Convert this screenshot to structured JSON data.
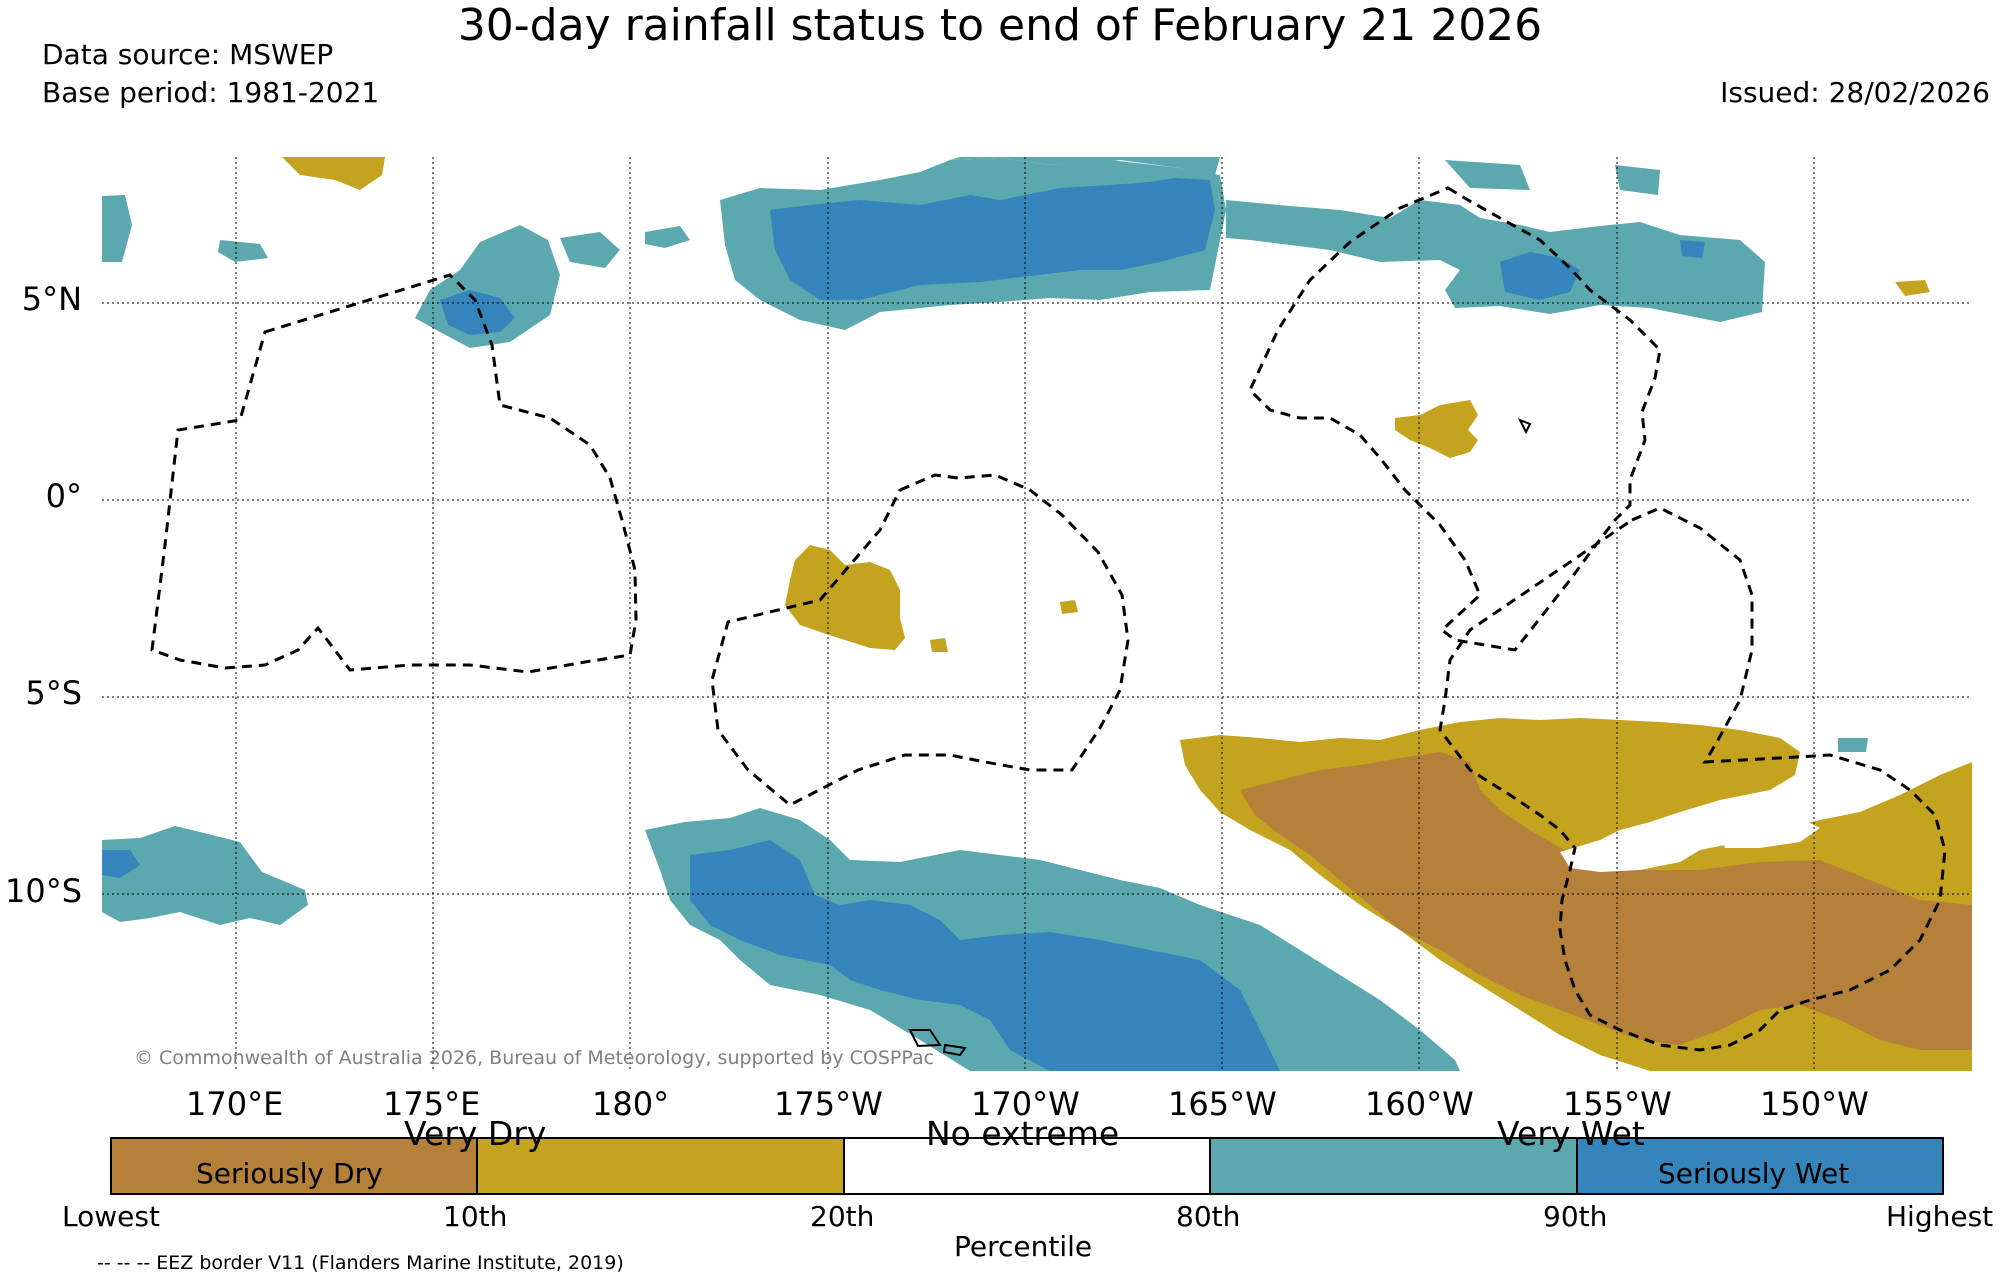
{
  "title": "30-day rainfall status to end of February 21 2026",
  "data_source": "Data source: MSWEP",
  "base_period": "Base period: 1981-2021",
  "issued": "Issued: 28/02/2026",
  "credit": "© Commonwealth of Australia 2026, Bureau of Meteorology, supported by COSPPac",
  "eez_note": "-- -- -- EEZ border V11 (Flanders Marine Institute, 2019)",
  "lat_ticks": [
    "5°N",
    "0°",
    "5°S",
    "10°S"
  ],
  "lon_ticks": [
    "170°E",
    "175°E",
    "180°",
    "175°W",
    "170°W",
    "165°W",
    "160°W",
    "155°W",
    "150°W"
  ],
  "colors": {
    "seriously_dry": "#b5803a",
    "very_dry": "#c4a31e",
    "no_extreme": "#ffffff",
    "very_wet": "#5ba9ae",
    "seriously_wet": "#3584bb"
  },
  "legend": {
    "headings": {
      "very_dry": "Very Dry",
      "no_extreme": "No extreme",
      "very_wet": "Very Wet"
    },
    "segment_labels": {
      "seriously_dry": "Seriously Dry",
      "seriously_wet": "Seriously Wet"
    },
    "percentile_labels": [
      "Lowest",
      "10th",
      "20th",
      "80th",
      "90th",
      "Highest"
    ],
    "axis_label": "Percentile"
  }
}
